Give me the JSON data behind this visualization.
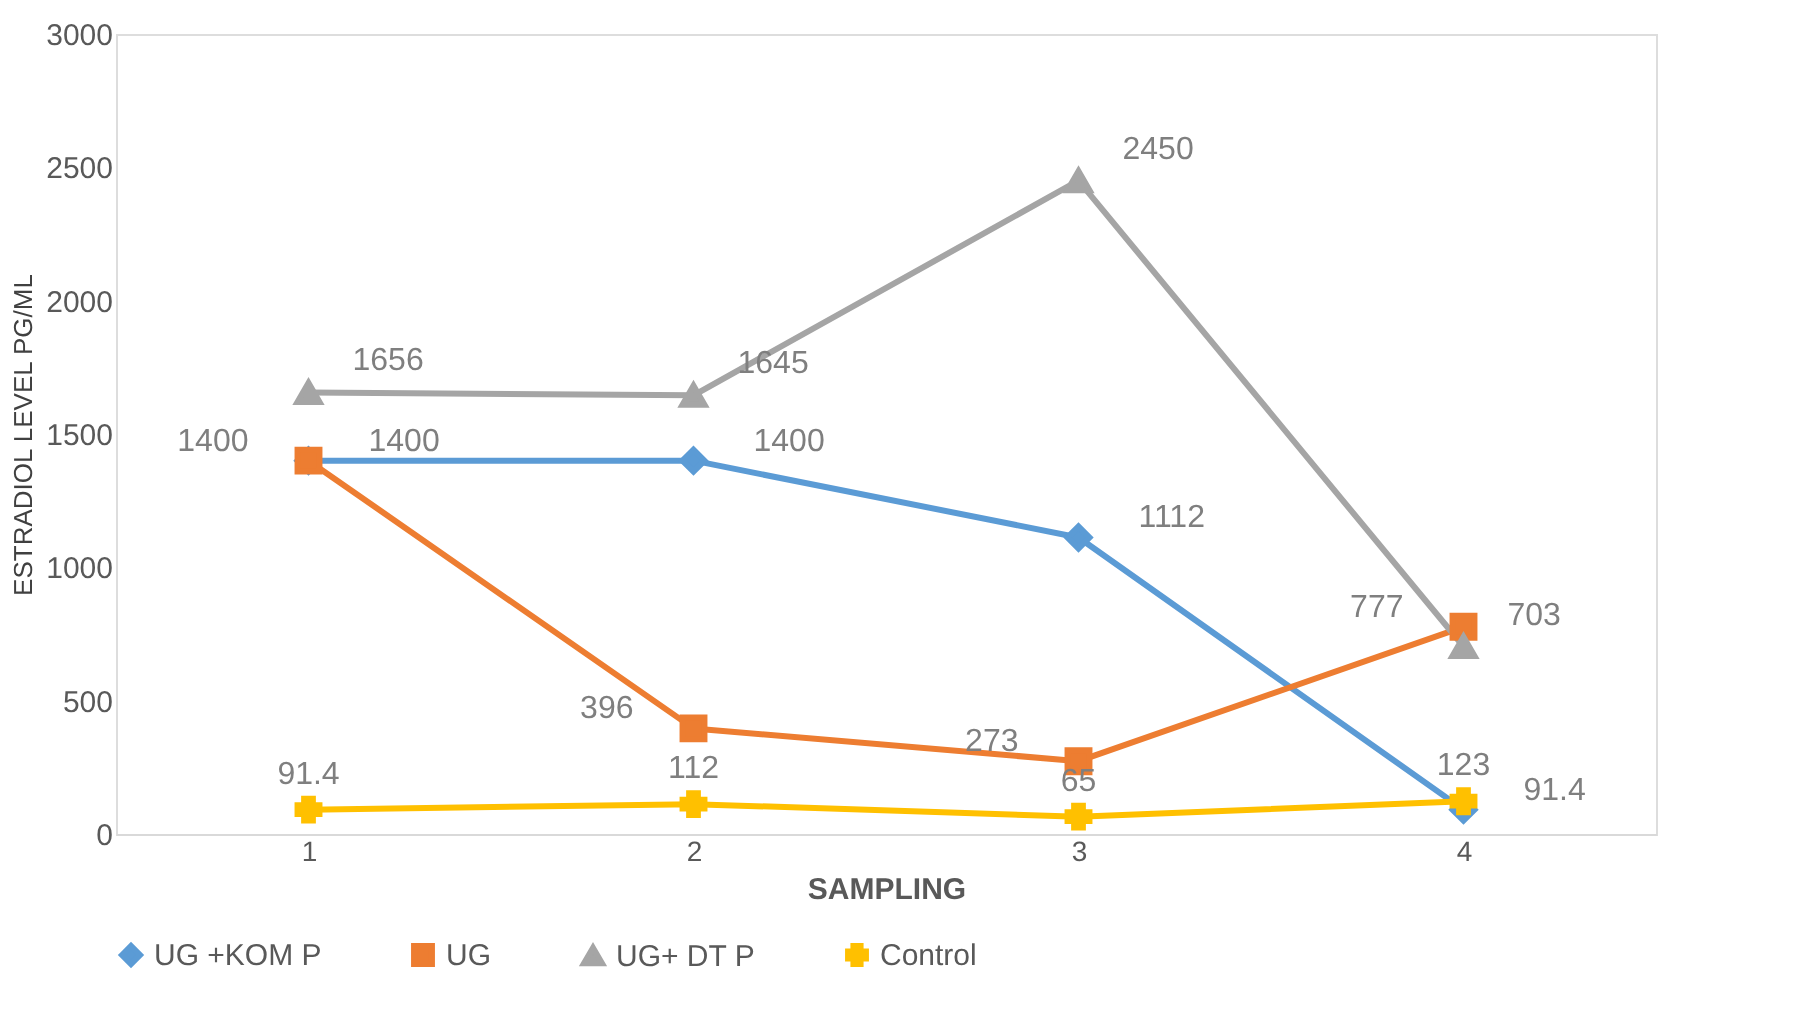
{
  "chart_data": {
    "type": "line",
    "xlabel": "SAMPLING",
    "ylabel": "ESTRADIOL LEVEL PG/ML",
    "categories": [
      "1",
      "2",
      "3",
      "4"
    ],
    "series": [
      {
        "name": "UG +KOM P",
        "color": "#5b9bd5",
        "marker": "diamond",
        "values": [
          1400,
          1400,
          1112,
          91.4
        ]
      },
      {
        "name": "UG",
        "color": "#ed7d31",
        "marker": "square",
        "values": [
          1400,
          396,
          273,
          777
        ]
      },
      {
        "name": "UG+ DT P",
        "color": "#a5a5a5",
        "marker": "triangle",
        "values": [
          1656,
          1645,
          2450,
          703
        ]
      },
      {
        "name": "Control",
        "color": "#ffc000",
        "marker": "cross",
        "values": [
          91.4,
          112,
          65,
          123
        ]
      }
    ],
    "ylim": [
      0,
      3000
    ],
    "yticks": [
      0,
      500,
      1000,
      1500,
      2000,
      2500,
      3000
    ],
    "grid": false,
    "legend": "bottom",
    "data_labels": true,
    "line_style": "solid"
  }
}
